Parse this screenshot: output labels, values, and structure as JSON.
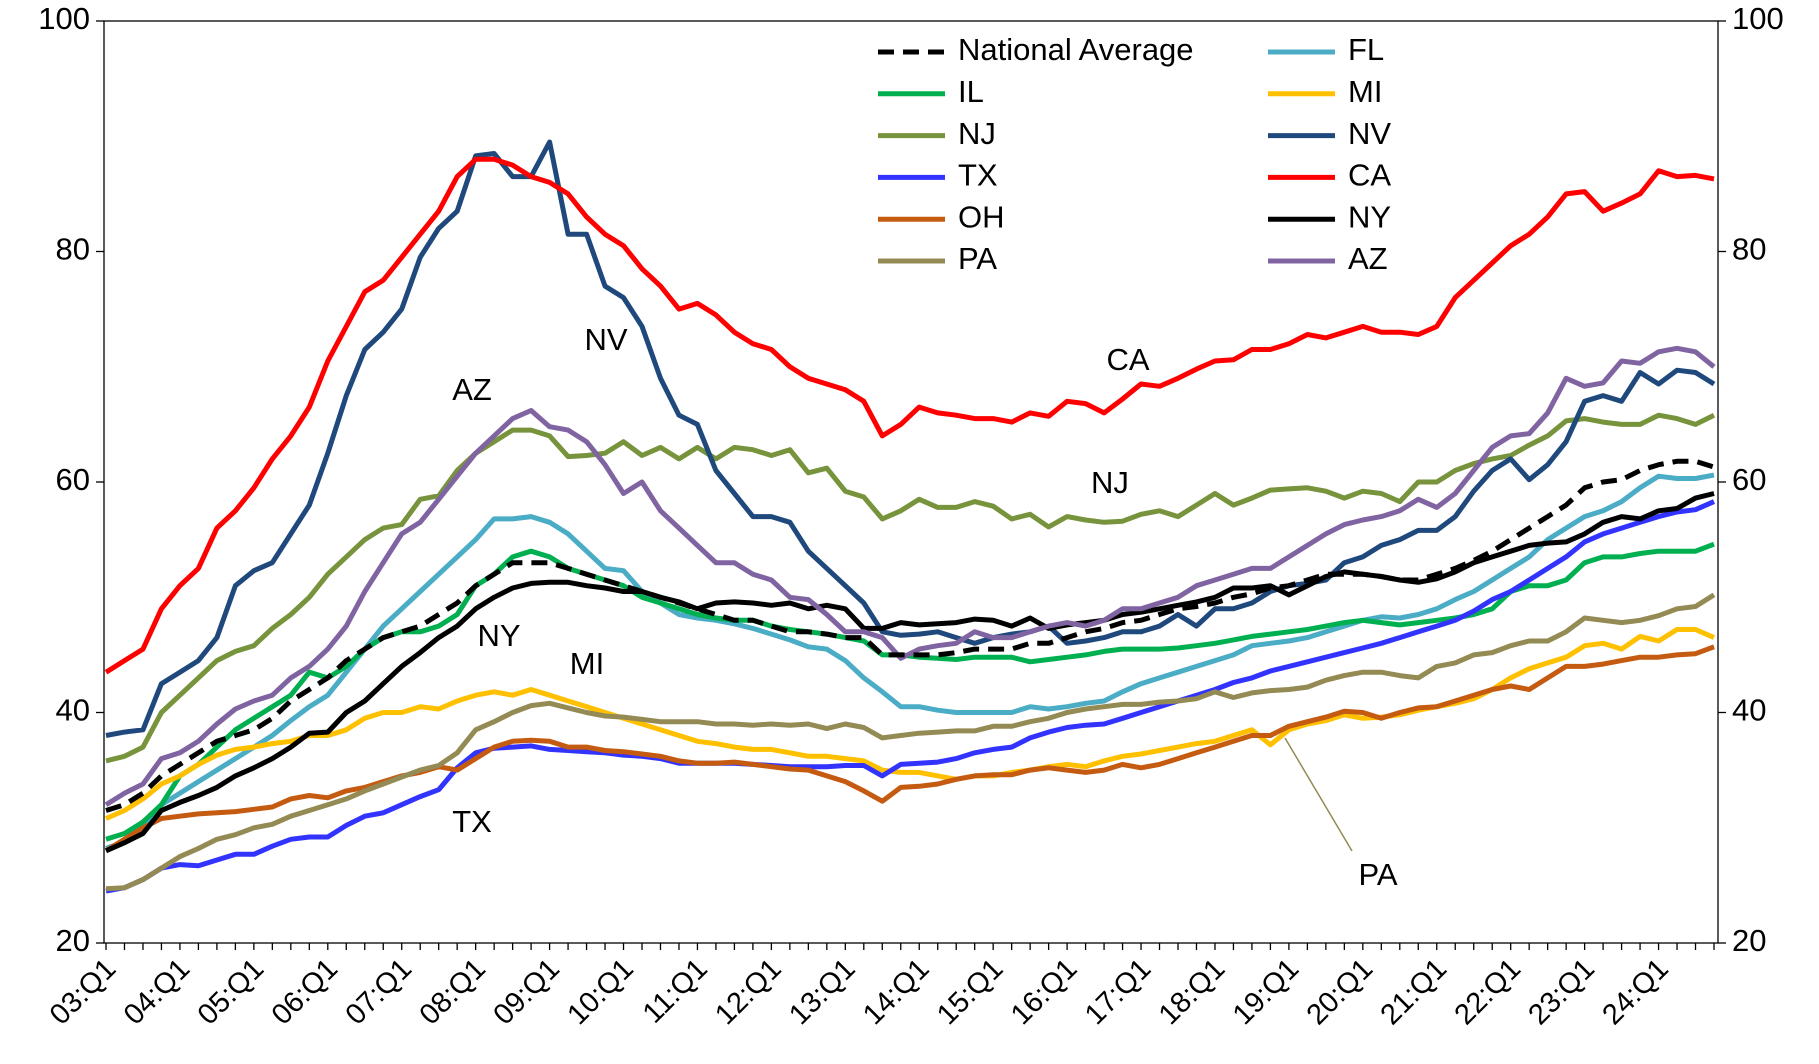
{
  "chart_data": {
    "type": "line",
    "categories": [
      "03:Q1",
      null,
      null,
      null,
      "04:Q1",
      null,
      null,
      null,
      "05:Q1",
      null,
      null,
      null,
      "06:Q1",
      null,
      null,
      null,
      "07:Q1",
      null,
      null,
      null,
      "08:Q1",
      null,
      null,
      null,
      "09:Q1",
      null,
      null,
      null,
      "10:Q1",
      null,
      null,
      null,
      "11:Q1",
      null,
      null,
      null,
      "12:Q1",
      null,
      null,
      null,
      "13:Q1",
      null,
      null,
      null,
      "14:Q1",
      null,
      null,
      null,
      "15:Q1",
      null,
      null,
      null,
      "16:Q1",
      null,
      null,
      null,
      "17:Q1",
      null,
      null,
      null,
      "18:Q1",
      null,
      null,
      null,
      "19:Q1",
      null,
      null,
      null,
      "20:Q1",
      null,
      null,
      null,
      "21:Q1",
      null,
      null,
      null,
      "22:Q1",
      null,
      null,
      null,
      "23:Q1",
      null,
      null,
      null,
      "24:Q1",
      null,
      null,
      null
    ],
    "ylim": [
      20,
      100
    ],
    "yticks": [
      20,
      40,
      60,
      80,
      100
    ],
    "y2lim": [
      20,
      100
    ],
    "y2ticks": [
      20,
      40,
      60,
      80,
      100
    ],
    "grid": false,
    "legend": "top",
    "series": [
      {
        "name": "National Average",
        "color": "#000000",
        "dash": true,
        "values": [
          31.5,
          32,
          33,
          34.5,
          35.5,
          36.5,
          37.5,
          38,
          38.5,
          39.5,
          41,
          42,
          43,
          44.5,
          45.5,
          46.5,
          47,
          47.5,
          48.5,
          49.5,
          51,
          52,
          53,
          53,
          53,
          52.5,
          52,
          51.5,
          51,
          50.5,
          50,
          49.5,
          49,
          48.5,
          48,
          48,
          47.5,
          47,
          47,
          46.8,
          46.5,
          46.5,
          45,
          45,
          45,
          45,
          45.2,
          45.5,
          45.5,
          45.5,
          46,
          46,
          46.5,
          47,
          47.3,
          47.8,
          48,
          48.5,
          49,
          49.2,
          49.5,
          50,
          50.3,
          50.8,
          51,
          51.5,
          52,
          52,
          52,
          51.8,
          51.5,
          51.5,
          52,
          52.5,
          53.2,
          54,
          55,
          56,
          57,
          58,
          59.5,
          60,
          60.2,
          61,
          61.5,
          61.8,
          61.8,
          61.3
        ]
      },
      {
        "name": "FL",
        "color": "#4bacc6",
        "values": [
          28.2,
          28.8,
          30,
          32,
          33,
          34,
          35,
          36,
          37,
          38,
          39.3,
          40.5,
          41.5,
          43.5,
          45.5,
          47.5,
          49,
          50.5,
          52,
          53.5,
          55,
          56.8,
          56.8,
          57,
          56.5,
          55.5,
          54,
          52.5,
          52.3,
          50.5,
          49.5,
          48.5,
          48.2,
          48,
          47.7,
          47.3,
          46.8,
          46.3,
          45.7,
          45.5,
          44.5,
          43,
          41.8,
          40.5,
          40.5,
          40.2,
          40,
          40,
          40,
          40,
          40.5,
          40.3,
          40.5,
          40.8,
          41,
          41.8,
          42.5,
          43,
          43.5,
          44,
          44.5,
          45,
          45.8,
          46,
          46.2,
          46.5,
          47,
          47.5,
          48,
          48.3,
          48.2,
          48.5,
          49,
          49.8,
          50.5,
          51.5,
          52.5,
          53.5,
          55,
          56,
          57,
          57.5,
          58.3,
          59.5,
          60.5,
          60.3,
          60.3,
          60.6
        ]
      },
      {
        "name": "IL",
        "color": "#00b050",
        "values": [
          29,
          29.5,
          30.5,
          32,
          34.5,
          35.5,
          37,
          38.5,
          39.5,
          40.5,
          41.5,
          43.5,
          43,
          44,
          45.5,
          46.5,
          47,
          47,
          47.5,
          48.5,
          51,
          52,
          53.5,
          54,
          53.5,
          52.5,
          52,
          51.5,
          51,
          50,
          49.5,
          49,
          48.5,
          48.2,
          48,
          48,
          47.5,
          47.2,
          47,
          46.8,
          46.5,
          46.2,
          45,
          45,
          44.8,
          44.7,
          44.6,
          44.8,
          44.8,
          44.8,
          44.4,
          44.6,
          44.8,
          45,
          45.3,
          45.5,
          45.5,
          45.5,
          45.6,
          45.8,
          46,
          46.3,
          46.6,
          46.8,
          47,
          47.2,
          47.5,
          47.8,
          48,
          47.8,
          47.6,
          47.8,
          48,
          48.2,
          48.5,
          49,
          50.5,
          51,
          51,
          51.5,
          53,
          53.5,
          53.5,
          53.8,
          54,
          54,
          54,
          54.6
        ]
      },
      {
        "name": "MI",
        "color": "#ffc000",
        "values": [
          30.8,
          31.5,
          32.5,
          33.8,
          34.5,
          35.5,
          36.3,
          36.8,
          37,
          37.3,
          37.5,
          38,
          38,
          38.5,
          39.5,
          40,
          40,
          40.5,
          40.3,
          41,
          41.5,
          41.8,
          41.5,
          42,
          41.5,
          41,
          40.5,
          40,
          39.5,
          39,
          38.5,
          38,
          37.5,
          37.3,
          37,
          36.8,
          36.8,
          36.5,
          36.2,
          36.2,
          36,
          35.8,
          35,
          34.8,
          34.8,
          34.5,
          34.2,
          34.5,
          34.5,
          34.8,
          35,
          35.3,
          35.5,
          35.3,
          35.8,
          36.2,
          36.4,
          36.7,
          37,
          37.3,
          37.5,
          38,
          38.5,
          37.2,
          38.5,
          39,
          39.3,
          39.8,
          39.5,
          39.6,
          39.8,
          40.2,
          40.5,
          40.8,
          41.2,
          42,
          43,
          43.8,
          44.3,
          44.8,
          45.8,
          46,
          45.5,
          46.6,
          46.2,
          47.2,
          47.2,
          46.5
        ]
      },
      {
        "name": "NJ",
        "color": "#77933c",
        "values": [
          35.8,
          36.2,
          37,
          40,
          41.5,
          43,
          44.5,
          45.3,
          45.8,
          47.3,
          48.5,
          50,
          52,
          53.5,
          55,
          56,
          56.3,
          58.5,
          58.8,
          61,
          62.5,
          63.5,
          64.5,
          64.5,
          64,
          62.2,
          62.3,
          62.5,
          63.5,
          62.3,
          63,
          62,
          63,
          62,
          63,
          62.8,
          62.3,
          62.8,
          60.8,
          61.2,
          59.2,
          58.7,
          56.8,
          57.5,
          58.5,
          57.8,
          57.8,
          58.3,
          57.9,
          56.8,
          57.2,
          56.1,
          57,
          56.7,
          56.5,
          56.6,
          57.2,
          57.5,
          57,
          58,
          59,
          58,
          58.6,
          59.3,
          59.4,
          59.5,
          59.2,
          58.6,
          59.2,
          59,
          58.3,
          60,
          60,
          61,
          61.6,
          62,
          62.3,
          63.2,
          64,
          65.3,
          65.5,
          65.2,
          65,
          65,
          65.8,
          65.5,
          65,
          65.8
        ]
      },
      {
        "name": "NV",
        "color": "#1f497d",
        "values": [
          38,
          38.3,
          38.5,
          42.5,
          43.5,
          44.5,
          46.5,
          51,
          52.3,
          53,
          55.5,
          58,
          62.5,
          67.5,
          71.5,
          73,
          75,
          79.5,
          82,
          83.5,
          88.3,
          88.5,
          86.5,
          86.5,
          89.5,
          81.5,
          81.5,
          77,
          76,
          73.5,
          69,
          65.8,
          65,
          61,
          59,
          57,
          57,
          56.5,
          54,
          52.5,
          51,
          49.5,
          47,
          46.7,
          46.8,
          47,
          46.5,
          46,
          46.5,
          46.8,
          47,
          47.5,
          46,
          46.2,
          46.5,
          47,
          47,
          47.5,
          48.5,
          47.5,
          49,
          49,
          49.5,
          50.5,
          51,
          51.2,
          51.5,
          53,
          53.5,
          54.5,
          55,
          55.8,
          55.8,
          57,
          59.2,
          61,
          62,
          60.2,
          61.5,
          63.5,
          67,
          67.5,
          67,
          69.5,
          68.5,
          69.7,
          69.5,
          68.5
        ]
      },
      {
        "name": "TX",
        "color": "#3333ff",
        "values": [
          24.5,
          24.8,
          25.5,
          26.5,
          26.8,
          26.7,
          27.2,
          27.7,
          27.7,
          28.4,
          29,
          29.2,
          29.2,
          30.2,
          31,
          31.3,
          32,
          32.7,
          33.3,
          35.2,
          36.5,
          36.9,
          37,
          37.1,
          36.8,
          36.7,
          36.6,
          36.5,
          36.3,
          36.2,
          36,
          35.6,
          35.6,
          35.6,
          35.6,
          35.5,
          35.4,
          35.3,
          35.3,
          35.3,
          35.4,
          35.4,
          34.5,
          35.5,
          35.6,
          35.7,
          36,
          36.5,
          36.8,
          37,
          37.8,
          38.3,
          38.7,
          38.9,
          39,
          39.5,
          40,
          40.5,
          41,
          41.5,
          42,
          42.6,
          43,
          43.6,
          44,
          44.4,
          44.8,
          45.2,
          45.6,
          46,
          46.5,
          47,
          47.5,
          48,
          48.8,
          49.8,
          50.5,
          51.5,
          52.5,
          53.5,
          54.8,
          55.5,
          56,
          56.5,
          57,
          57.4,
          57.6,
          58.3
        ]
      },
      {
        "name": "CA",
        "color": "#ff0000",
        "values": [
          43.5,
          44.5,
          45.5,
          49,
          51,
          52.5,
          56,
          57.5,
          59.5,
          62,
          64,
          66.5,
          70.5,
          73.5,
          76.5,
          77.5,
          79.5,
          81.5,
          83.5,
          86.5,
          88,
          88,
          87.5,
          86.5,
          86,
          85,
          83,
          81.5,
          80.5,
          78.5,
          77,
          75,
          75.5,
          74.5,
          73,
          72,
          71.5,
          70,
          69,
          68.5,
          68,
          67,
          64,
          65,
          66.5,
          66,
          65.8,
          65.5,
          65.5,
          65.2,
          66,
          65.7,
          67,
          66.8,
          66,
          67.2,
          68.5,
          68.3,
          69,
          69.8,
          70.5,
          70.6,
          71.5,
          71.5,
          72,
          72.8,
          72.5,
          73,
          73.5,
          73,
          73,
          72.8,
          73.5,
          76,
          77.5,
          79,
          80.5,
          81.5,
          83,
          85,
          85.2,
          83.5,
          84.2,
          85,
          87,
          86.5,
          86.6,
          86.3
        ]
      },
      {
        "name": "OH",
        "color": "#c55a11",
        "values": [
          28,
          29,
          30,
          30.8,
          31,
          31.2,
          31.3,
          31.4,
          31.6,
          31.8,
          32.5,
          32.8,
          32.6,
          33.2,
          33.5,
          34,
          34.5,
          34.8,
          35.3,
          35,
          36,
          37,
          37.5,
          37.6,
          37.5,
          37,
          37,
          36.7,
          36.6,
          36.4,
          36.2,
          35.8,
          35.6,
          35.6,
          35.7,
          35.5,
          35.3,
          35.1,
          35,
          34.5,
          34,
          33.2,
          32.3,
          33.5,
          33.6,
          33.8,
          34.2,
          34.5,
          34.6,
          34.6,
          35,
          35.2,
          35,
          34.8,
          35,
          35.5,
          35.2,
          35.5,
          36,
          36.5,
          37,
          37.5,
          38,
          38,
          38.8,
          39.2,
          39.6,
          40.1,
          40,
          39.5,
          40,
          40.4,
          40.5,
          41,
          41.5,
          42,
          42.3,
          42,
          43,
          44,
          44,
          44.2,
          44.5,
          44.8,
          44.8,
          45,
          45.1,
          45.7
        ]
      },
      {
        "name": "NY",
        "color": "#000000",
        "values": [
          28,
          28.7,
          29.5,
          31.5,
          32.2,
          32.8,
          33.5,
          34.5,
          35.2,
          36,
          37,
          38.2,
          38.3,
          40,
          41,
          42.5,
          44,
          45.2,
          46.5,
          47.5,
          49,
          50,
          50.8,
          51.2,
          51.3,
          51.3,
          51,
          50.8,
          50.5,
          50.5,
          50,
          49.6,
          49,
          49.5,
          49.6,
          49.5,
          49.3,
          49.5,
          49,
          49.3,
          49,
          47.3,
          47.3,
          47.8,
          47.6,
          47.7,
          47.8,
          48.1,
          48,
          47.5,
          48.2,
          47.3,
          47.6,
          47.8,
          48,
          48.5,
          48.7,
          49,
          49.3,
          49.6,
          50,
          50.8,
          50.8,
          51,
          50.2,
          51,
          51.8,
          52.2,
          52,
          51.8,
          51.5,
          51.3,
          51.6,
          52.2,
          53,
          53.5,
          54,
          54.5,
          54.7,
          54.8,
          55.5,
          56.5,
          57,
          56.8,
          57.5,
          57.7,
          58.6,
          59
        ]
      },
      {
        "name": "PA",
        "color": "#948a54",
        "values": [
          24.7,
          24.8,
          25.5,
          26.5,
          27.5,
          28.2,
          29,
          29.4,
          30,
          30.3,
          31,
          31.5,
          32,
          32.5,
          33.2,
          33.8,
          34.4,
          35,
          35.4,
          36.5,
          38.5,
          39.2,
          40,
          40.6,
          40.8,
          40.4,
          40,
          39.7,
          39.6,
          39.4,
          39.2,
          39.2,
          39.2,
          39,
          39,
          38.9,
          39,
          38.9,
          39,
          38.6,
          39,
          38.7,
          37.8,
          38,
          38.2,
          38.3,
          38.4,
          38.4,
          38.8,
          38.8,
          39.2,
          39.5,
          40,
          40.3,
          40.5,
          40.7,
          40.7,
          40.9,
          41,
          41.2,
          41.8,
          41.3,
          41.7,
          41.9,
          42,
          42.2,
          42.8,
          43.2,
          43.5,
          43.5,
          43.2,
          43,
          44,
          44.3,
          45,
          45.2,
          45.8,
          46.2,
          46.2,
          47,
          48.2,
          48,
          47.8,
          48,
          48.4,
          49,
          49.2,
          50.2
        ]
      },
      {
        "name": "AZ",
        "color": "#8064a2",
        "values": [
          32,
          33,
          33.8,
          36,
          36.5,
          37.5,
          39,
          40.3,
          41,
          41.5,
          43,
          44,
          45.5,
          47.5,
          50.5,
          53,
          55.5,
          56.5,
          58.5,
          60.5,
          62.5,
          64,
          65.5,
          66.2,
          64.8,
          64.5,
          63.5,
          61.5,
          59,
          60,
          57.5,
          56,
          54.5,
          53,
          53,
          52,
          51.5,
          50,
          49.8,
          48.5,
          47,
          47,
          46.5,
          44.7,
          45.5,
          45.8,
          46,
          47,
          46.5,
          46.5,
          47,
          47.5,
          47.8,
          47.5,
          48,
          49,
          49,
          49.5,
          50,
          51,
          51.5,
          52,
          52.5,
          52.5,
          53.5,
          54.5,
          55.5,
          56.3,
          56.7,
          57,
          57.5,
          58.5,
          57.8,
          59,
          61,
          63,
          64,
          64.2,
          66,
          69,
          68.3,
          68.6,
          70.5,
          70.3,
          71.3,
          71.6,
          71.3,
          70
        ]
      }
    ],
    "annotations": [
      {
        "text": "NV",
        "color": "#1f497d"
      },
      {
        "text": "AZ",
        "color": "#8064a2"
      },
      {
        "text": "CA",
        "color": "#ff0000"
      },
      {
        "text": "NJ",
        "color": "#77933c"
      },
      {
        "text": "NY",
        "color": "#000000"
      },
      {
        "text": "MI",
        "color": "#ffc000"
      },
      {
        "text": "TX",
        "color": "#3333ff"
      },
      {
        "text": "PA",
        "color": "#948a54"
      }
    ]
  }
}
